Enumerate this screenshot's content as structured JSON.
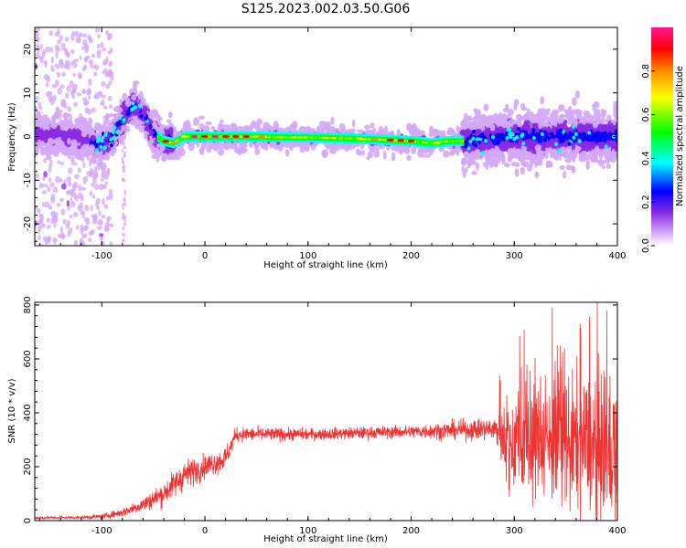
{
  "figure": {
    "title": "S125.2023.002.03.50.G06"
  },
  "chart_data": [
    {
      "type": "heatmap",
      "xlabel": "Height of straight line (km)",
      "ylabel": "Frequency (Hz)",
      "xlim": [
        -165,
        400
      ],
      "ylim": [
        -25,
        25
      ],
      "x_ticks": [
        -100,
        0,
        100,
        200,
        300,
        400
      ],
      "y_ticks": [
        -20,
        -10,
        0,
        10,
        20
      ],
      "colorbar": {
        "label": "Normalized spectral amplitude",
        "range": [
          0,
          1
        ],
        "ticks": [
          "0.0",
          "0.2",
          "0.4",
          "0.6",
          "0.8"
        ],
        "colors": [
          "#ffffff",
          "#d4a8f7",
          "#8a2be2",
          "#0000ff",
          "#00ffff",
          "#00ff00",
          "#ffff00",
          "#ff8c00",
          "#ff0000",
          "#ff1493"
        ]
      },
      "ridge": {
        "x": [
          -165,
          -140,
          -120,
          -100,
          -90,
          -80,
          -70,
          -60,
          -50,
          -40,
          -30,
          -20,
          0,
          50,
          100,
          150,
          200,
          220,
          240,
          260,
          300,
          350,
          400
        ],
        "freq": [
          0,
          0.5,
          -0.5,
          -2,
          0,
          4,
          7,
          5,
          1,
          -1,
          -1.5,
          0,
          0,
          0,
          -0.2,
          -0.5,
          -1,
          -1.5,
          -1,
          -1,
          0,
          0,
          0
        ]
      }
    },
    {
      "type": "line",
      "xlabel": "Height of straight line (km)",
      "ylabel": "SNR (10 * v/v)",
      "xlim": [
        -165,
        400
      ],
      "ylim": [
        0,
        810
      ],
      "x_ticks": [
        -100,
        0,
        100,
        200,
        300,
        400
      ],
      "y_ticks": [
        0,
        200,
        400,
        600,
        800
      ],
      "line_color": "#ee3333",
      "envelope": {
        "x": [
          -165,
          -120,
          -100,
          -80,
          -60,
          -40,
          -20,
          0,
          20,
          30,
          100,
          200,
          280,
          300,
          350,
          400
        ],
        "mean": [
          10,
          12,
          15,
          30,
          60,
          100,
          170,
          200,
          230,
          320,
          320,
          330,
          340,
          300,
          300,
          250
        ],
        "noise": [
          5,
          5,
          8,
          15,
          25,
          40,
          50,
          40,
          40,
          25,
          20,
          22,
          40,
          180,
          220,
          230
        ]
      }
    }
  ]
}
